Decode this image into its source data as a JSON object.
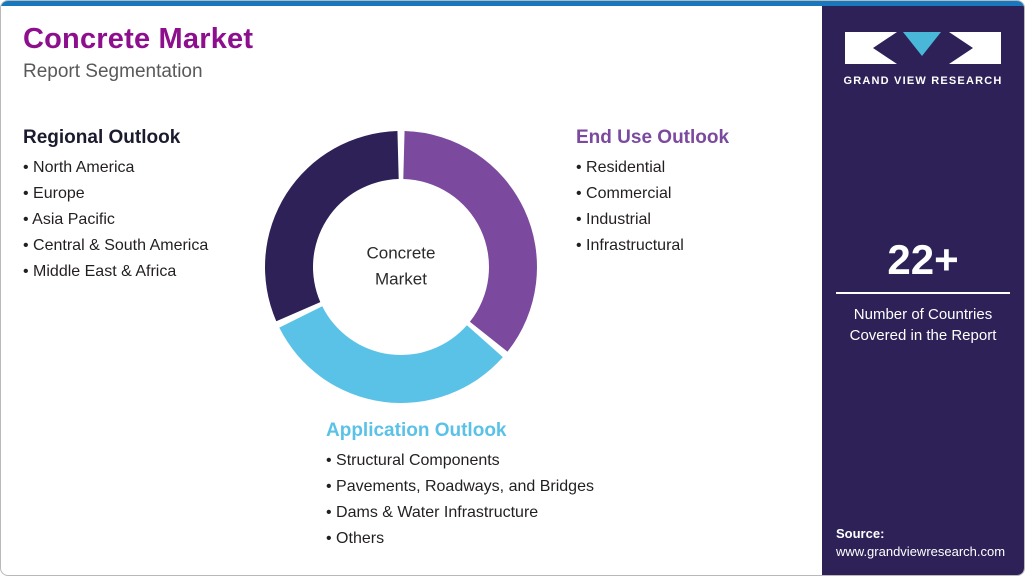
{
  "header": {
    "title": "Concrete Market",
    "subtitle": "Report Segmentation"
  },
  "sections": {
    "regional": {
      "title": "Regional Outlook",
      "items": [
        "North America",
        "Europe",
        "Asia Pacific",
        "Central & South America",
        "Middle East & Africa"
      ]
    },
    "end_use": {
      "title": "End Use Outlook",
      "items": [
        "Residential",
        "Commercial",
        "Industrial",
        "Infrastructural"
      ]
    },
    "application": {
      "title": "Application Outlook",
      "items": [
        "Structural Components",
        "Pavements, Roadways, and Bridges",
        "Dams & Water Infrastructure",
        "Others"
      ]
    }
  },
  "chart_data": {
    "type": "pie",
    "donut": true,
    "title": "Concrete Market Report Segmentation",
    "center_label": "Concrete Market",
    "start_deg": 0,
    "gap_deg": 3,
    "legend_position": "around",
    "segments": [
      {
        "label": "End Use Outlook",
        "sweep_deg": 130,
        "value": 36,
        "color": "#7B4A9E"
      },
      {
        "label": "Application Outlook",
        "sweep_deg": 115,
        "value": 32,
        "color": "#5BC2E7"
      },
      {
        "label": "Regional Outlook",
        "sweep_deg": 115,
        "value": 32,
        "color": "#2E2157"
      }
    ]
  },
  "sidebar": {
    "logo_text": "GRAND VIEW RESEARCH",
    "stat_number": "22+",
    "stat_description": "Number of Countries Covered in the Report",
    "source_label": "Source:",
    "source_url": "www.grandviewresearch.com"
  },
  "colors": {
    "title": "#8E0F8E",
    "top_bar": "#1878BE",
    "sidebar_bg": "#2E2157",
    "regional_accent": "#2E2157",
    "end_use_accent": "#7B4A9E",
    "application_accent": "#5BC2E7"
  }
}
